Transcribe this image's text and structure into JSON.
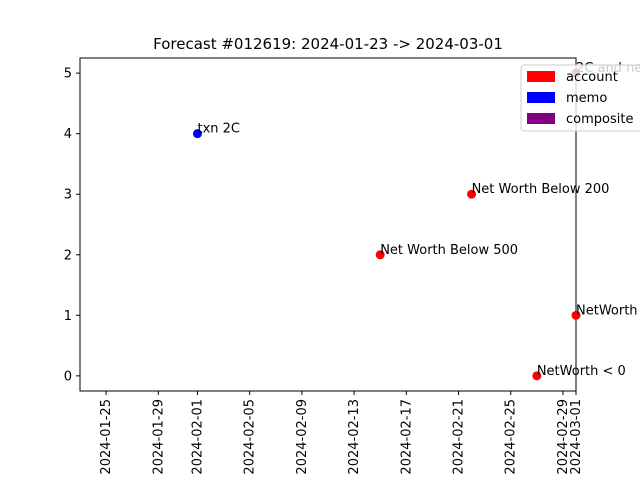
{
  "chart_data": {
    "type": "scatter",
    "title": "Forecast #012619: 2024-01-23 -> 2024-03-01",
    "xlabel": "",
    "ylabel": "",
    "xlim": [
      "2024-01-23",
      "2024-03-01"
    ],
    "ylim": [
      -0.25,
      5.25
    ],
    "x_ticks": [
      "2024-01-25",
      "2024-01-29",
      "2024-02-01",
      "2024-02-05",
      "2024-02-09",
      "2024-02-13",
      "2024-02-17",
      "2024-02-21",
      "2024-02-25",
      "2024-02-29",
      "2024-03-01"
    ],
    "y_ticks": [
      0,
      1,
      2,
      3,
      4,
      5
    ],
    "grid": false,
    "legend_position": "top-right",
    "series": [
      {
        "name": "account",
        "color": "#ff0000",
        "points": [
          {
            "x": "2024-02-15",
            "y": 2,
            "label": "Net Worth Below 500"
          },
          {
            "x": "2024-02-22",
            "y": 3,
            "label": "Net Worth Below 200"
          },
          {
            "x": "2024-02-27",
            "y": 0,
            "label": "NetWorth < 0"
          },
          {
            "x": "2024-03-01",
            "y": 1,
            "label": "NetWorth"
          }
        ]
      },
      {
        "name": "memo",
        "color": "#0000ff",
        "points": [
          {
            "x": "2024-02-01",
            "y": 4,
            "label": "txn 2C"
          }
        ]
      },
      {
        "name": "composite",
        "color": "#800080",
        "points": [
          {
            "x": "2024-03-01",
            "y": 5,
            "label": "2C and neg net"
          }
        ]
      }
    ]
  }
}
